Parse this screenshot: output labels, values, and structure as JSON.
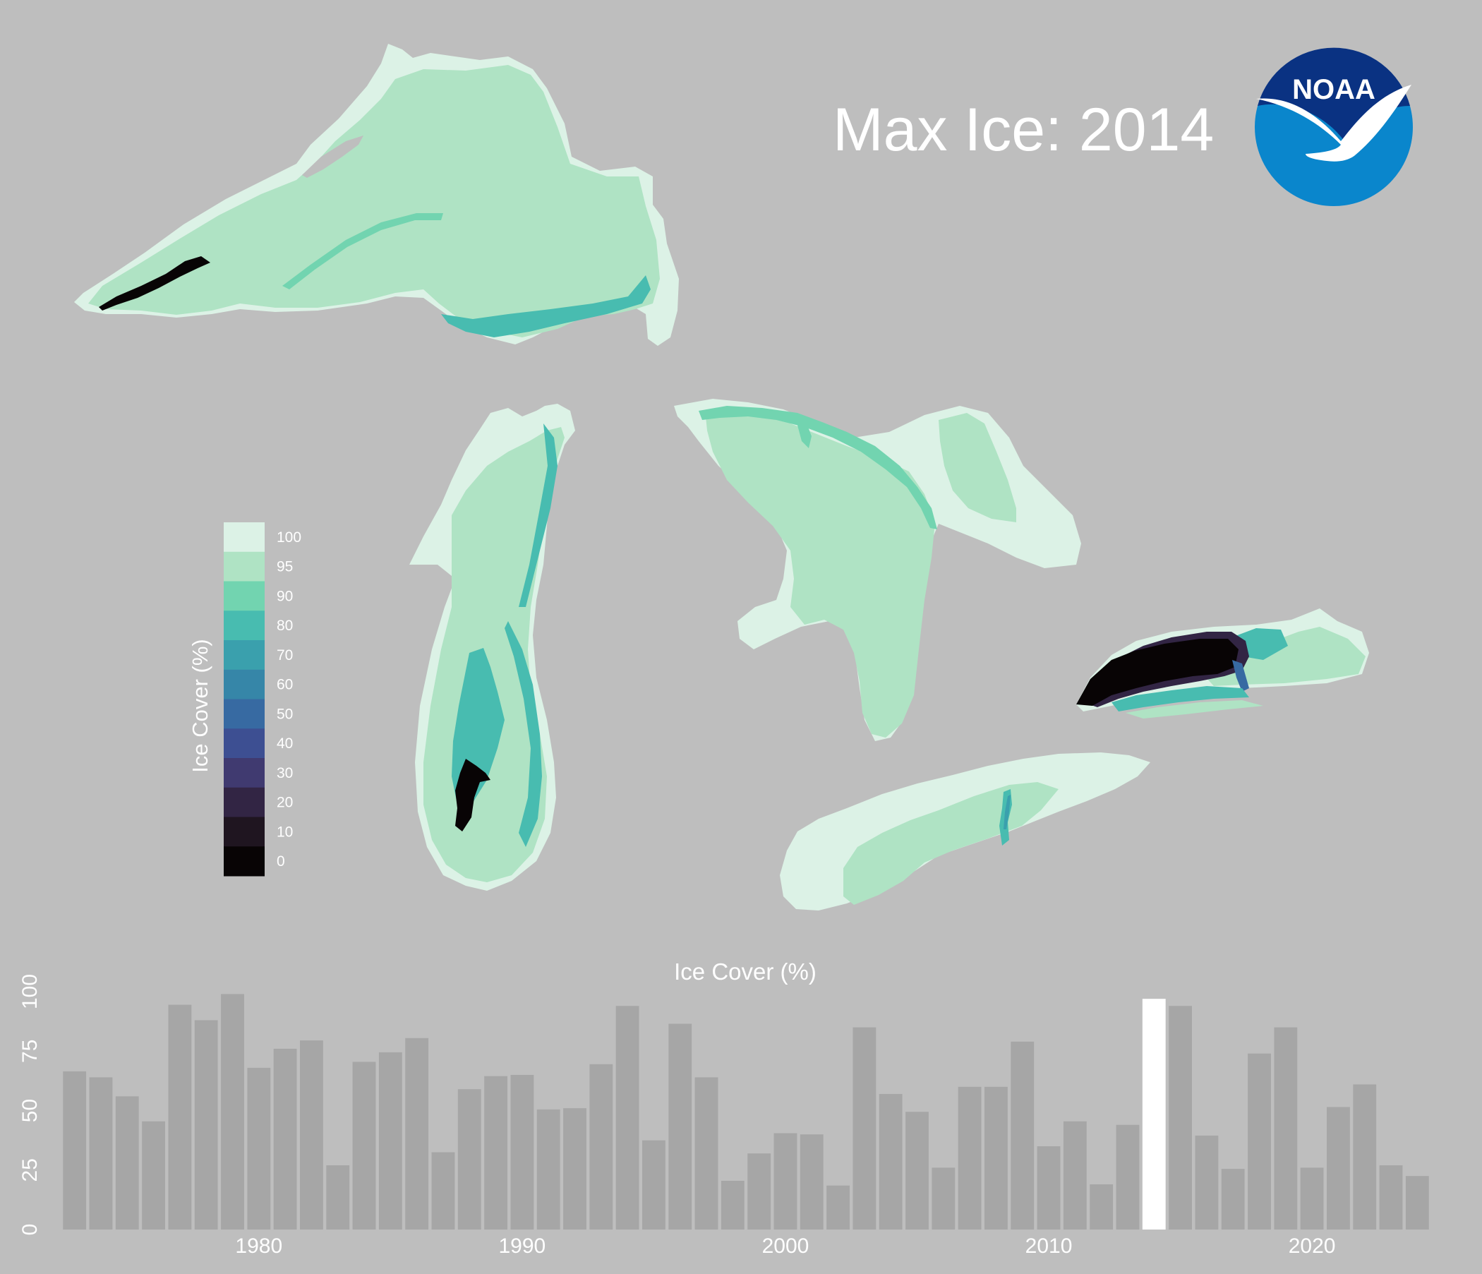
{
  "map": {
    "title": "Max Ice: 2014",
    "logo_text": "NOAA",
    "colors": {
      "background": "#bebebe",
      "c100": "#dcf2e6",
      "c95": "#afe3c4",
      "c90": "#72d4b0",
      "c80": "#48bcb0",
      "c70": "#3aa0ad",
      "c60": "#3686a8",
      "c50": "#376aa2",
      "c40": "#3d4f92",
      "c30": "#403a70",
      "c20": "#322544",
      "c10": "#1f1520",
      "c0": "#080405",
      "noaa_dark": "#0a3282",
      "noaa_light": "#0a86cc"
    }
  },
  "legend": {
    "title": "Ice Cover (%)",
    "ticks": [
      "100",
      "95",
      "90",
      "80",
      "70",
      "60",
      "50",
      "40",
      "30",
      "20",
      "10",
      "0"
    ]
  },
  "chart_data": {
    "type": "bar",
    "title": "Ice Cover (%)",
    "xlabel": "",
    "ylabel": "",
    "ylim": [
      0,
      100
    ],
    "y_ticks": [
      "0",
      "25",
      "50",
      "75",
      "100"
    ],
    "x_ticks": [
      "1980",
      "1990",
      "2000",
      "2010",
      "2020"
    ],
    "highlight_year": 2014,
    "x": [
      1973,
      1974,
      1975,
      1976,
      1977,
      1978,
      1979,
      1980,
      1981,
      1982,
      1983,
      1984,
      1985,
      1986,
      1987,
      1988,
      1989,
      1990,
      1991,
      1992,
      1993,
      1994,
      1995,
      1996,
      1997,
      1998,
      1999,
      2000,
      2001,
      2002,
      2003,
      2004,
      2005,
      2006,
      2007,
      2008,
      2009,
      2010,
      2011,
      2012,
      2013,
      2014,
      2015,
      2016,
      2017,
      2018,
      2019,
      2020,
      2021,
      2022,
      2023,
      2024
    ],
    "values": [
      66.5,
      64,
      56,
      45.5,
      94.5,
      88,
      99,
      68,
      76,
      79.5,
      27,
      70.5,
      74.5,
      80.5,
      32.5,
      59,
      64.5,
      65,
      50.5,
      51,
      69.5,
      94,
      37.5,
      86.5,
      64,
      20.5,
      32,
      40.5,
      40,
      18.5,
      85,
      57,
      49.5,
      26,
      60,
      60,
      79,
      35,
      45.5,
      19,
      44,
      97,
      94,
      39.5,
      25.5,
      74,
      85,
      26,
      51.5,
      61,
      27,
      22.5
    ]
  }
}
